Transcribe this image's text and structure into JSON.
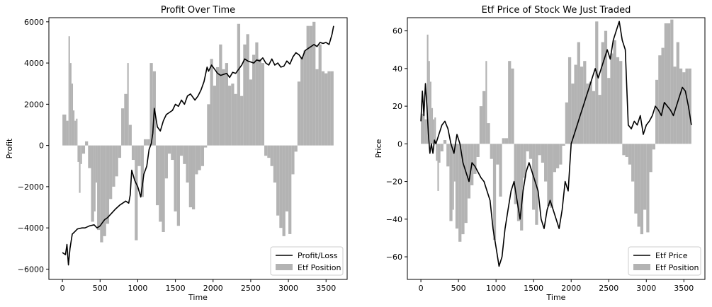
{
  "chart_data": [
    {
      "type": "line",
      "title": "Profit Over Time",
      "xlabel": "Time",
      "ylabel": "Profit",
      "xlim": [
        -180,
        3780
      ],
      "ylim": [
        -6500,
        6200
      ],
      "xticks": [
        0,
        500,
        1000,
        1500,
        2000,
        2500,
        3000,
        3500
      ],
      "xtick_labels": [
        "0",
        "500",
        "1000",
        "1500",
        "2000",
        "2500",
        "3000",
        "3500"
      ],
      "yticks": [
        -6000,
        -4000,
        -2000,
        0,
        2000,
        4000,
        6000
      ],
      "ytick_labels": [
        "−6000",
        "−4000",
        "−2000",
        "0",
        "2000",
        "4000",
        "6000"
      ],
      "legend": {
        "placement": "lower-right",
        "entries": [
          "Profit/Loss",
          "Etf Position"
        ]
      },
      "grid": false,
      "series": [
        {
          "name": "Profit/Loss",
          "kind": "line",
          "color": "#000000",
          "x": [
            0,
            40,
            60,
            80,
            100,
            130,
            160,
            200,
            260,
            300,
            360,
            420,
            460,
            500,
            520,
            560,
            600,
            650,
            700,
            760,
            800,
            840,
            880,
            900,
            920,
            960,
            1000,
            1040,
            1080,
            1120,
            1150,
            1180,
            1200,
            1220,
            1260,
            1300,
            1340,
            1380,
            1420,
            1460,
            1500,
            1540,
            1580,
            1620,
            1660,
            1700,
            1760,
            1800,
            1840,
            1880,
            1920,
            1940,
            1980,
            2020,
            2060,
            2100,
            2140,
            2180,
            2220,
            2260,
            2300,
            2340,
            2380,
            2420,
            2460,
            2500,
            2540,
            2580,
            2620,
            2660,
            2700,
            2740,
            2780,
            2820,
            2860,
            2900,
            2940,
            2980,
            3020,
            3060,
            3100,
            3140,
            3180,
            3220,
            3260,
            3300,
            3340,
            3380,
            3420,
            3460,
            3500,
            3540,
            3580,
            3600
          ],
          "y": [
            -5200,
            -5300,
            -4800,
            -5800,
            -5000,
            -4300,
            -4200,
            -4050,
            -4000,
            -4000,
            -3900,
            -3850,
            -4000,
            -3900,
            -3800,
            -3600,
            -3500,
            -3300,
            -3100,
            -2900,
            -2800,
            -2700,
            -2800,
            -2400,
            -1200,
            -1700,
            -2000,
            -2500,
            -1400,
            -1000,
            -200,
            100,
            600,
            1800,
            900,
            700,
            1200,
            1500,
            1600,
            1700,
            2000,
            1900,
            2200,
            2000,
            2400,
            2500,
            2200,
            2400,
            2700,
            3100,
            3800,
            3600,
            3900,
            3700,
            3500,
            3400,
            3450,
            3500,
            3300,
            3550,
            3500,
            3700,
            3900,
            4200,
            4100,
            4050,
            4000,
            4150,
            4100,
            4250,
            4000,
            3900,
            4200,
            3900,
            4000,
            3800,
            3850,
            4100,
            3950,
            4300,
            4500,
            4400,
            4200,
            4600,
            4700,
            4800,
            4900,
            4800,
            5000,
            4950,
            5000,
            4900,
            5400,
            5800
          ]
        },
        {
          "name": "Etf Position",
          "kind": "bar",
          "color": "#b3b3b3",
          "x": [
            0,
            50,
            80,
            100,
            120,
            140,
            160,
            180,
            200,
            220,
            240,
            260,
            300,
            340,
            380,
            420,
            440,
            460,
            500,
            540,
            580,
            620,
            660,
            700,
            740,
            780,
            820,
            860,
            880,
            920,
            960,
            1000,
            1040,
            1080,
            1120,
            1160,
            1200,
            1240,
            1280,
            1320,
            1360,
            1400,
            1440,
            1480,
            1520,
            1560,
            1600,
            1640,
            1680,
            1720,
            1760,
            1800,
            1840,
            1880,
            1920,
            1960,
            2000,
            2040,
            2080,
            2120,
            2160,
            2200,
            2240,
            2280,
            2320,
            2360,
            2400,
            2440,
            2480,
            2520,
            2560,
            2600,
            2640,
            2680,
            2720,
            2760,
            2800,
            2840,
            2880,
            2920,
            2960,
            3000,
            3040,
            3080,
            3120,
            3160,
            3200,
            3240,
            3280,
            3320,
            3360,
            3400,
            3440,
            3480,
            3520,
            3560
          ],
          "y": [
            1500,
            1200,
            5300,
            4000,
            3000,
            1700,
            1200,
            1300,
            -800,
            -2300,
            -900,
            -400,
            200,
            -1100,
            -3700,
            -3200,
            -1800,
            -4100,
            -4700,
            -4400,
            -3800,
            -2600,
            -2000,
            -1500,
            -600,
            1800,
            2500,
            4000,
            1000,
            -700,
            -4600,
            -1000,
            -2500,
            300,
            300,
            4000,
            3600,
            -2900,
            -3700,
            -4200,
            -1600,
            -400,
            -700,
            -3200,
            -3900,
            -500,
            -900,
            -1800,
            -3000,
            -3100,
            -1400,
            -1200,
            -1000,
            -100,
            2000,
            4200,
            2900,
            3800,
            4900,
            3700,
            4000,
            2900,
            3000,
            2500,
            5900,
            2400,
            4900,
            5400,
            3200,
            4400,
            5000,
            4200,
            4000,
            -500,
            -600,
            -1000,
            -1800,
            -3400,
            -4000,
            -4400,
            -3200,
            -4300,
            -1400,
            -300,
            3100,
            4300,
            4600,
            5800,
            5800,
            6000,
            3700,
            4900,
            3600,
            3500,
            3600,
            3600
          ]
        }
      ]
    },
    {
      "type": "line",
      "title": "Etf Price of Stock We Just Traded",
      "xlabel": "Time",
      "ylabel": "Price",
      "xlim": [
        -180,
        3780
      ],
      "ylim": [
        -72,
        67
      ],
      "xticks": [
        0,
        500,
        1000,
        1500,
        2000,
        2500,
        3000,
        3500
      ],
      "xtick_labels": [
        "0",
        "500",
        "1000",
        "1500",
        "2000",
        "2500",
        "3000",
        "3500"
      ],
      "yticks": [
        -60,
        -40,
        -20,
        0,
        20,
        40,
        60
      ],
      "ytick_labels": [
        "−60",
        "−40",
        "−20",
        "0",
        "20",
        "40",
        "60"
      ],
      "legend": {
        "placement": "lower-right",
        "entries": [
          "Etf Price",
          "Etf Position"
        ]
      },
      "grid": false,
      "series": [
        {
          "name": "Etf Price",
          "kind": "line",
          "color": "#000000",
          "x": [
            0,
            20,
            40,
            60,
            80,
            100,
            120,
            140,
            160,
            180,
            200,
            240,
            280,
            320,
            360,
            400,
            440,
            480,
            520,
            560,
            600,
            640,
            680,
            720,
            760,
            800,
            840,
            880,
            920,
            960,
            1000,
            1040,
            1080,
            1120,
            1160,
            1200,
            1240,
            1280,
            1320,
            1360,
            1400,
            1440,
            1480,
            1520,
            1560,
            1600,
            1640,
            1680,
            1720,
            1760,
            1800,
            1840,
            1880,
            1920,
            1960,
            2000,
            2040,
            2080,
            2120,
            2160,
            2200,
            2240,
            2280,
            2320,
            2360,
            2400,
            2440,
            2480,
            2520,
            2560,
            2600,
            2640,
            2680,
            2720,
            2760,
            2800,
            2840,
            2880,
            2920,
            2960,
            3000,
            3040,
            3080,
            3120,
            3160,
            3200,
            3240,
            3280,
            3320,
            3360,
            3400,
            3440,
            3480,
            3520,
            3560,
            3580,
            3600
          ],
          "y": [
            12,
            28,
            15,
            32,
            20,
            5,
            -5,
            0,
            -5,
            2,
            0,
            5,
            10,
            12,
            8,
            0,
            -5,
            5,
            0,
            -10,
            -15,
            -20,
            -10,
            -12,
            -15,
            -18,
            -20,
            -25,
            -30,
            -45,
            -55,
            -65,
            -60,
            -45,
            -35,
            -25,
            -20,
            -30,
            -40,
            -25,
            -15,
            -10,
            -15,
            -20,
            -25,
            -40,
            -45,
            -35,
            -30,
            -35,
            -40,
            -45,
            -35,
            -20,
            -25,
            0,
            5,
            10,
            15,
            20,
            25,
            30,
            35,
            40,
            35,
            40,
            45,
            50,
            45,
            55,
            60,
            65,
            55,
            50,
            10,
            8,
            12,
            10,
            15,
            5,
            10,
            12,
            15,
            20,
            18,
            15,
            22,
            20,
            18,
            15,
            20,
            25,
            30,
            28,
            20,
            15,
            10
          ]
        },
        {
          "name": "Etf Position",
          "kind": "bar",
          "color": "#b3b3b3",
          "x": [
            0,
            50,
            80,
            100,
            120,
            140,
            160,
            180,
            200,
            220,
            240,
            260,
            300,
            340,
            380,
            420,
            440,
            460,
            500,
            540,
            580,
            620,
            660,
            700,
            740,
            780,
            820,
            860,
            880,
            920,
            960,
            1000,
            1040,
            1080,
            1120,
            1160,
            1200,
            1240,
            1280,
            1320,
            1360,
            1400,
            1440,
            1480,
            1520,
            1560,
            1600,
            1640,
            1680,
            1720,
            1760,
            1800,
            1840,
            1880,
            1920,
            1960,
            2000,
            2040,
            2080,
            2120,
            2160,
            2200,
            2240,
            2280,
            2320,
            2360,
            2400,
            2440,
            2480,
            2520,
            2560,
            2600,
            2640,
            2680,
            2720,
            2760,
            2800,
            2840,
            2880,
            2920,
            2960,
            3000,
            3040,
            3080,
            3120,
            3160,
            3200,
            3240,
            3280,
            3320,
            3360,
            3400,
            3440,
            3480,
            3520,
            3560
          ],
          "y": [
            16,
            13,
            58,
            44,
            33,
            19,
            13,
            14,
            -9,
            -25,
            -10,
            -4,
            2,
            -12,
            -41,
            -35,
            -20,
            -45,
            -52,
            -48,
            -42,
            -29,
            -22,
            -16,
            -7,
            20,
            28,
            44,
            11,
            -8,
            -51,
            -11,
            -28,
            3,
            3,
            44,
            40,
            -32,
            -41,
            -46,
            -18,
            -4,
            -8,
            -35,
            -43,
            -6,
            -10,
            -20,
            -33,
            -34,
            -15,
            -13,
            -11,
            -1,
            22,
            46,
            32,
            42,
            54,
            41,
            44,
            32,
            33,
            28,
            65,
            26,
            54,
            60,
            35,
            48,
            55,
            46,
            44,
            -6,
            -7,
            -11,
            -20,
            -37,
            -44,
            -48,
            -35,
            -47,
            -15,
            -3,
            34,
            47,
            51,
            64,
            64,
            66,
            41,
            54,
            40,
            38,
            40,
            40
          ]
        }
      ]
    }
  ]
}
